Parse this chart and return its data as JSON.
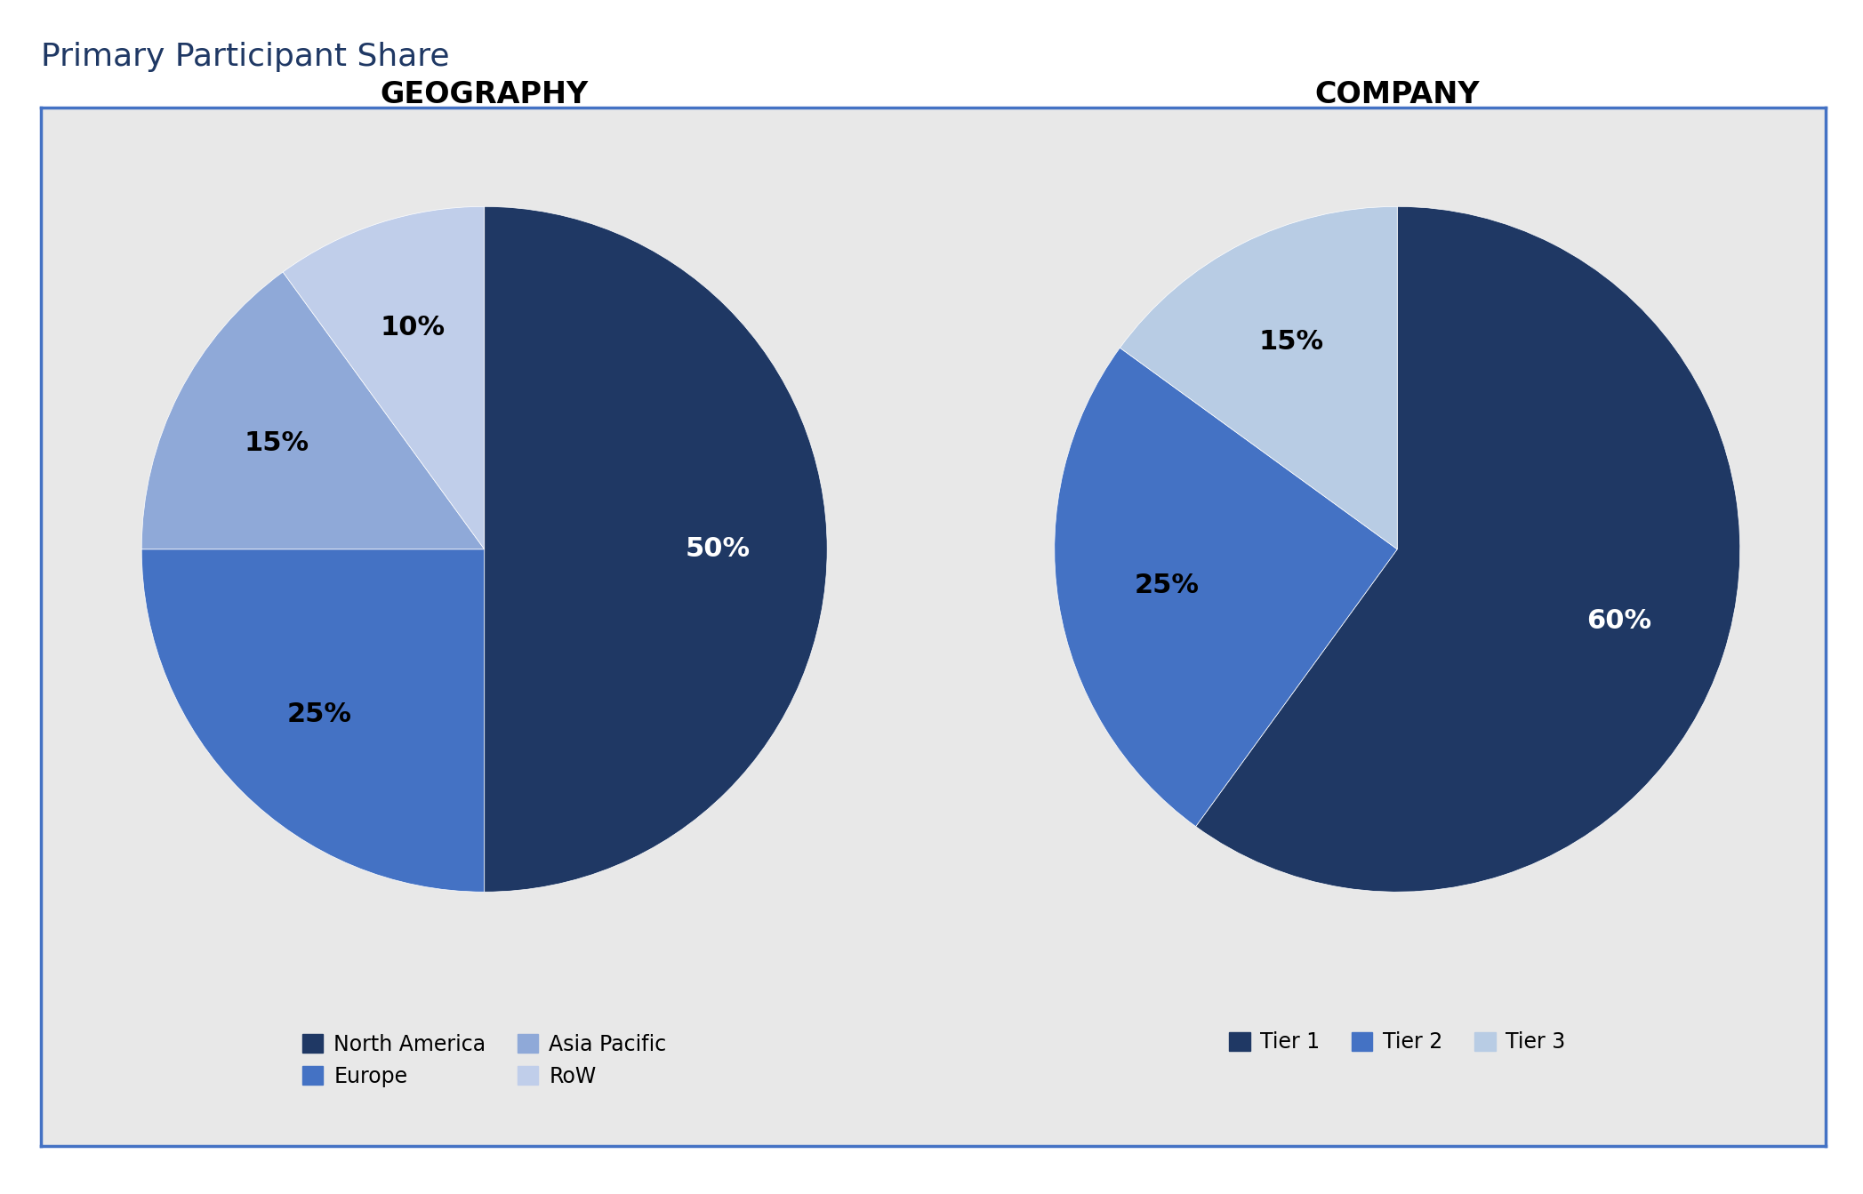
{
  "title": "Primary Participant Share",
  "title_color": "#1F3864",
  "title_fontsize": 26,
  "background_outer": "#ffffff",
  "background_inner": "#E8E8E8",
  "border_color": "#4472C4",
  "geo_title": "GEOGRAPHY",
  "company_title": "COMPANY",
  "subtitle_fontsize": 24,
  "geo_values": [
    50,
    25,
    15,
    10
  ],
  "geo_colors": [
    "#1F3864",
    "#4472C4",
    "#8FA9D8",
    "#C0CEEA"
  ],
  "geo_legend": [
    "North America",
    "Europe",
    "Asia Pacific",
    "RoW"
  ],
  "geo_pct_colors": [
    "white",
    "black",
    "black",
    "black"
  ],
  "company_values": [
    60,
    25,
    15
  ],
  "company_colors": [
    "#1F3864",
    "#4472C4",
    "#B8CCE4"
  ],
  "company_legend": [
    "Tier 1",
    "Tier 2",
    "Tier 3"
  ],
  "company_pct_colors": [
    "white",
    "black",
    "black"
  ],
  "pct_label_fontsize": 22,
  "legend_fontsize": 17
}
